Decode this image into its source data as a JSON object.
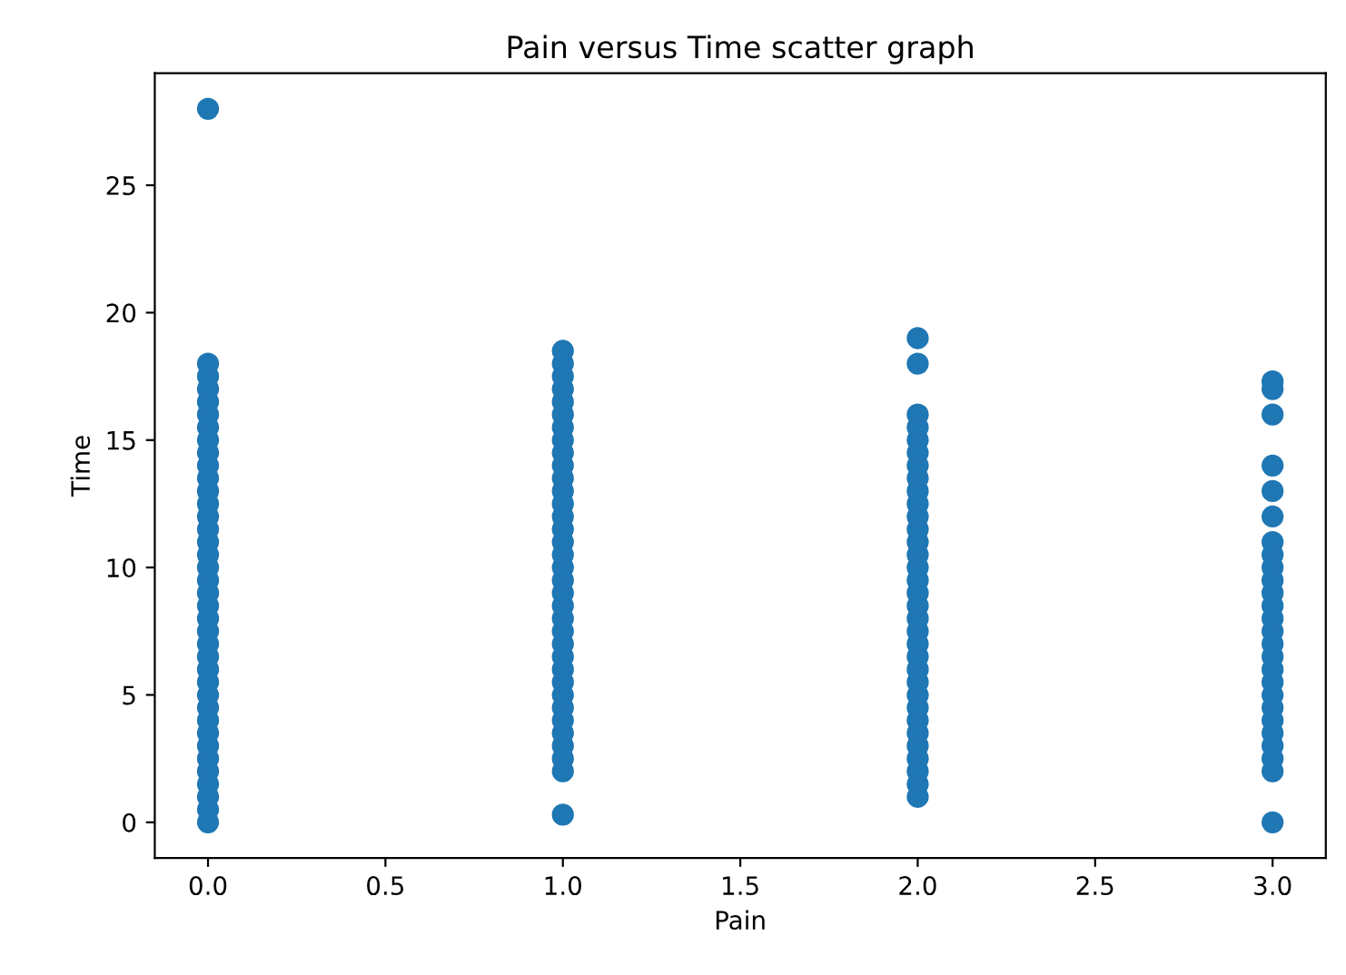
{
  "chart_data": {
    "type": "scatter",
    "title": "Pain versus Time scatter graph",
    "xlabel": "Pain",
    "ylabel": "Time",
    "series": [
      {
        "color": "#1f77b4",
        "x": [
          0,
          0,
          0,
          0,
          0,
          0,
          0,
          0,
          0,
          0,
          0,
          0,
          0,
          0,
          0,
          0,
          0,
          0,
          0,
          0,
          0,
          0,
          0,
          0,
          0,
          0,
          0,
          0,
          0,
          0,
          0,
          0,
          0,
          0,
          0,
          0,
          0,
          0,
          1,
          1,
          1,
          1,
          1,
          1,
          1,
          1,
          1,
          1,
          1,
          1,
          1,
          1,
          1,
          1,
          1,
          1,
          1,
          1,
          1,
          1,
          1,
          1,
          1,
          1,
          1,
          1,
          1,
          1,
          1,
          1,
          1,
          1,
          1,
          2,
          2,
          2,
          2,
          2,
          2,
          2,
          2,
          2,
          2,
          2,
          2,
          2,
          2,
          2,
          2,
          2,
          2,
          2,
          2,
          2,
          2,
          2,
          2,
          2,
          2,
          2,
          2,
          2,
          2,
          2,
          2,
          2,
          3,
          3,
          3,
          3,
          3,
          3,
          3,
          3,
          3,
          3,
          3,
          3,
          3,
          3,
          3,
          3,
          3,
          3,
          3,
          3,
          3,
          3,
          3,
          3,
          3,
          3
        ],
        "values": [
          0,
          0.5,
          1,
          1.5,
          2,
          2.5,
          3,
          3.5,
          4,
          4.5,
          5,
          5.5,
          6,
          6.5,
          7,
          7.5,
          8,
          8.5,
          9,
          9.5,
          10,
          10.5,
          11,
          11.5,
          12,
          12.5,
          13,
          13.5,
          14,
          14.5,
          15,
          15.5,
          16,
          16.5,
          17,
          17.5,
          18,
          28,
          0.3,
          2,
          2.5,
          3,
          3.5,
          4,
          4.5,
          5,
          5.5,
          6,
          6.5,
          7,
          7.5,
          8,
          8.5,
          9,
          9.5,
          10,
          10.5,
          11,
          11.5,
          12,
          12.5,
          13,
          13.5,
          14,
          14.5,
          15,
          15.5,
          16,
          16.5,
          17,
          17.5,
          18,
          18.5,
          1,
          1.5,
          2,
          2.5,
          3,
          3.5,
          4,
          4.5,
          5,
          5.5,
          6,
          6.5,
          7,
          7.5,
          8,
          8.5,
          9,
          9.5,
          10,
          10.5,
          11,
          11.5,
          12,
          12.5,
          13,
          13.5,
          14,
          14.5,
          15,
          15.5,
          16,
          18,
          19,
          0,
          2,
          2.5,
          3,
          3.5,
          4,
          4.5,
          5,
          5.5,
          6,
          6.5,
          7,
          7.5,
          8,
          8.5,
          9,
          9.5,
          10,
          10.5,
          11,
          12,
          13,
          14,
          16,
          17,
          17.3
        ]
      }
    ],
    "xlim": [
      -0.15,
      3.15
    ],
    "ylim": [
      -1.4,
      29.4
    ],
    "xticks": [
      {
        "value": 0,
        "label": "0.0"
      },
      {
        "value": 0.5,
        "label": "0.5"
      },
      {
        "value": 1,
        "label": "1.0"
      },
      {
        "value": 1.5,
        "label": "1.5"
      },
      {
        "value": 2,
        "label": "2.0"
      },
      {
        "value": 2.5,
        "label": "2.5"
      },
      {
        "value": 3,
        "label": "3.0"
      }
    ],
    "yticks": [
      0,
      5,
      10,
      15,
      20,
      25
    ],
    "marker": "circle",
    "grid": false,
    "legend": false
  }
}
